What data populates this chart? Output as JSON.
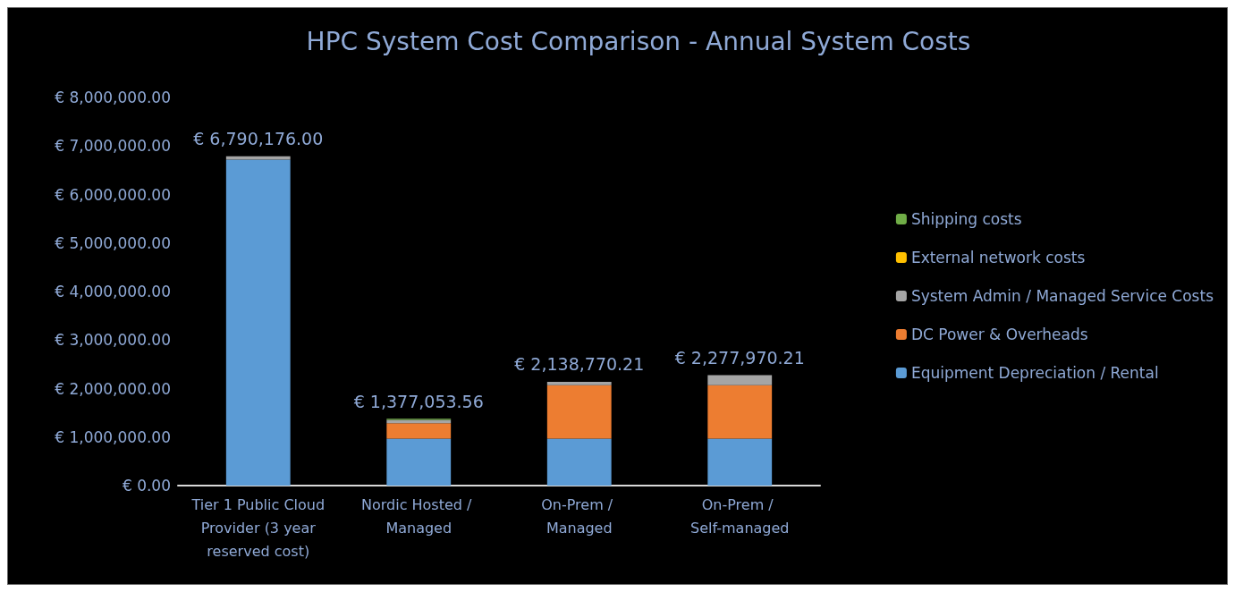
{
  "chart_data": {
    "type": "bar",
    "title": "HPC System Cost Comparison - Annual System Costs",
    "categories": [
      "Tier 1 Public Cloud Provider (3 year reserved cost)",
      "Nordic Hosted / Managed",
      "On-Prem / Managed",
      "On-Prem / Self-managed"
    ],
    "stacked": true,
    "series": [
      {
        "name": "Equipment Depreciation / Rental",
        "color": "#5b9bd5",
        "values": [
          6720176,
          967053.56,
          968770.21,
          967970.21
        ]
      },
      {
        "name": "DC Power & Overheads",
        "color": "#ed7d31",
        "values": [
          0,
          320000,
          1100000,
          1100000
        ]
      },
      {
        "name": "System Admin / Managed Service Costs",
        "color": "#a5a5a5",
        "values": [
          70000,
          70000,
          70000,
          210000
        ]
      },
      {
        "name": "External network costs",
        "color": "#ffc000",
        "values": [
          0,
          0,
          0,
          0
        ]
      },
      {
        "name": "Shipping costs",
        "color": "#70ad47",
        "values": [
          0,
          20000,
          0,
          0
        ]
      }
    ],
    "totals": [
      "€ 6,790,176.00",
      "€ 1,377,053.56",
      "€ 2,138,770.21",
      "€ 2,277,970.21"
    ],
    "ylim": [
      0,
      8000000
    ],
    "yticks": [
      {
        "value": 0,
        "label": "€ 0.00"
      },
      {
        "value": 1000000,
        "label": "€ 1,000,000.00"
      },
      {
        "value": 2000000,
        "label": "€ 2,000,000.00"
      },
      {
        "value": 3000000,
        "label": "€ 3,000,000.00"
      },
      {
        "value": 4000000,
        "label": "€ 4,000,000.00"
      },
      {
        "value": 5000000,
        "label": "€ 5,000,000.00"
      },
      {
        "value": 6000000,
        "label": "€ 6,000,000.00"
      },
      {
        "value": 7000000,
        "label": "€ 7,000,000.00"
      },
      {
        "value": 8000000,
        "label": "€ 8,000,000.00"
      }
    ],
    "grid": false,
    "legend": "right"
  }
}
